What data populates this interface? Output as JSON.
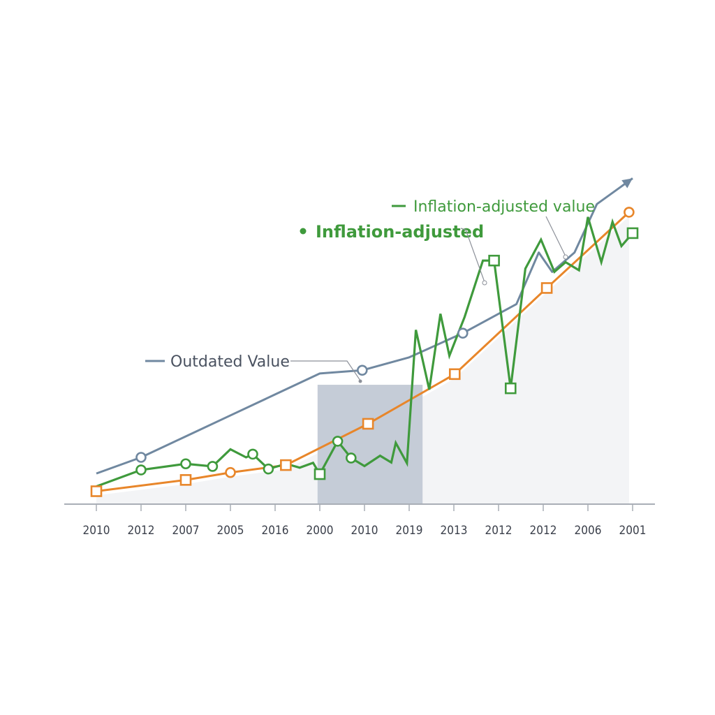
{
  "chart_data": {
    "type": "line",
    "title": "",
    "xlabel": "",
    "ylabel": "",
    "y_axis_visible": false,
    "ylim": [
      0,
      100
    ],
    "grid": false,
    "categories": [
      "2010",
      "2012",
      "2007",
      "2005",
      "2016",
      "2000",
      "2010",
      "2019",
      "2013",
      "2012",
      "2012",
      "2006",
      "2001"
    ],
    "highlight_band": {
      "from_index": 4.95,
      "to_index": 7.3,
      "color": "#c5ccd7"
    },
    "colors": {
      "outdated": "#7088a0",
      "orange": "#e8862a",
      "green": "#3f9a3c",
      "axis": "#a9aeb6",
      "area": "#f3f4f6"
    },
    "series": [
      {
        "name": "Outdated Value",
        "color": "#7088a0",
        "marker": "circle",
        "points": [
          [
            0,
            9.5
          ],
          [
            1,
            14.5
          ],
          [
            2,
            21
          ],
          [
            3,
            27.5
          ],
          [
            4,
            34
          ],
          [
            5,
            40.5
          ],
          [
            5.95,
            41.5
          ],
          [
            7,
            45.5
          ],
          [
            8.2,
            53
          ],
          [
            9.4,
            62
          ],
          [
            9.9,
            78
          ],
          [
            10.2,
            72
          ],
          [
            10.7,
            78
          ],
          [
            11.2,
            93
          ],
          [
            12,
            101
          ]
        ],
        "marker_indices": [
          1,
          6,
          8
        ],
        "arrow_end": true
      },
      {
        "name": "Inflation-adjusted value (orange)",
        "color": "#e8862a",
        "marker_mixed": true,
        "points": [
          [
            0,
            4
          ],
          [
            2,
            7.5
          ],
          [
            3,
            9.8
          ],
          [
            4.24,
            12.1
          ],
          [
            6.08,
            24.9
          ],
          [
            8.02,
            40.3
          ],
          [
            10.08,
            67
          ],
          [
            11.92,
            90.5
          ]
        ],
        "markers": [
          "square",
          "square",
          "circle",
          "square",
          "square",
          "square",
          "square",
          "circle"
        ]
      },
      {
        "name": "Inflation-adjusted",
        "color": "#3f9a3c",
        "points": [
          [
            0,
            5.5
          ],
          [
            1,
            10.6
          ],
          [
            2,
            12.5
          ],
          [
            2.6,
            11.7
          ],
          [
            3,
            17
          ],
          [
            3.35,
            14.5
          ],
          [
            3.5,
            15.5
          ],
          [
            3.85,
            10.9
          ],
          [
            4.25,
            12.5
          ],
          [
            4.55,
            11.3
          ],
          [
            4.85,
            12.8
          ],
          [
            5,
            9.3
          ],
          [
            5.4,
            19.5
          ],
          [
            5.7,
            14.3
          ],
          [
            6,
            11.8
          ],
          [
            6.35,
            15
          ],
          [
            6.6,
            12.9
          ],
          [
            6.7,
            19
          ],
          [
            6.95,
            12.7
          ],
          [
            7.15,
            54
          ],
          [
            7.45,
            35.5
          ],
          [
            7.7,
            59
          ],
          [
            7.9,
            46
          ],
          [
            8.24,
            58
          ],
          [
            8.65,
            75.5
          ],
          [
            8.9,
            75.5
          ],
          [
            9.27,
            35.9
          ],
          [
            9.6,
            73
          ],
          [
            9.95,
            82
          ],
          [
            10.25,
            72
          ],
          [
            10.5,
            75
          ],
          [
            10.8,
            72.5
          ],
          [
            11,
            89
          ],
          [
            11.3,
            75
          ],
          [
            11.55,
            87.5
          ],
          [
            11.75,
            80
          ],
          [
            12,
            84
          ]
        ],
        "marker_points": [
          [
            1,
            "circle"
          ],
          [
            2,
            "circle"
          ],
          [
            2.6,
            "circle"
          ],
          [
            3.5,
            "circle"
          ],
          [
            3.85,
            "circle"
          ],
          [
            5,
            "square"
          ],
          [
            5.4,
            "circle"
          ],
          [
            5.7,
            "circle"
          ],
          [
            8.9,
            "square"
          ],
          [
            9.27,
            "square"
          ],
          [
            12,
            "square"
          ]
        ]
      }
    ],
    "annotations": [
      {
        "text": "Outdated Value",
        "series": "Outdated Value",
        "style": "legend-line",
        "color": "#4a5260"
      },
      {
        "text": "Inflation-adjusted value",
        "series": "Inflation-adjusted value",
        "style": "legend-line",
        "color": "#3f9a3c"
      },
      {
        "text": "Inflation-adjusted",
        "series": "Inflation-adjusted",
        "style": "legend-dot-bold",
        "color": "#3f9a3c"
      }
    ]
  }
}
